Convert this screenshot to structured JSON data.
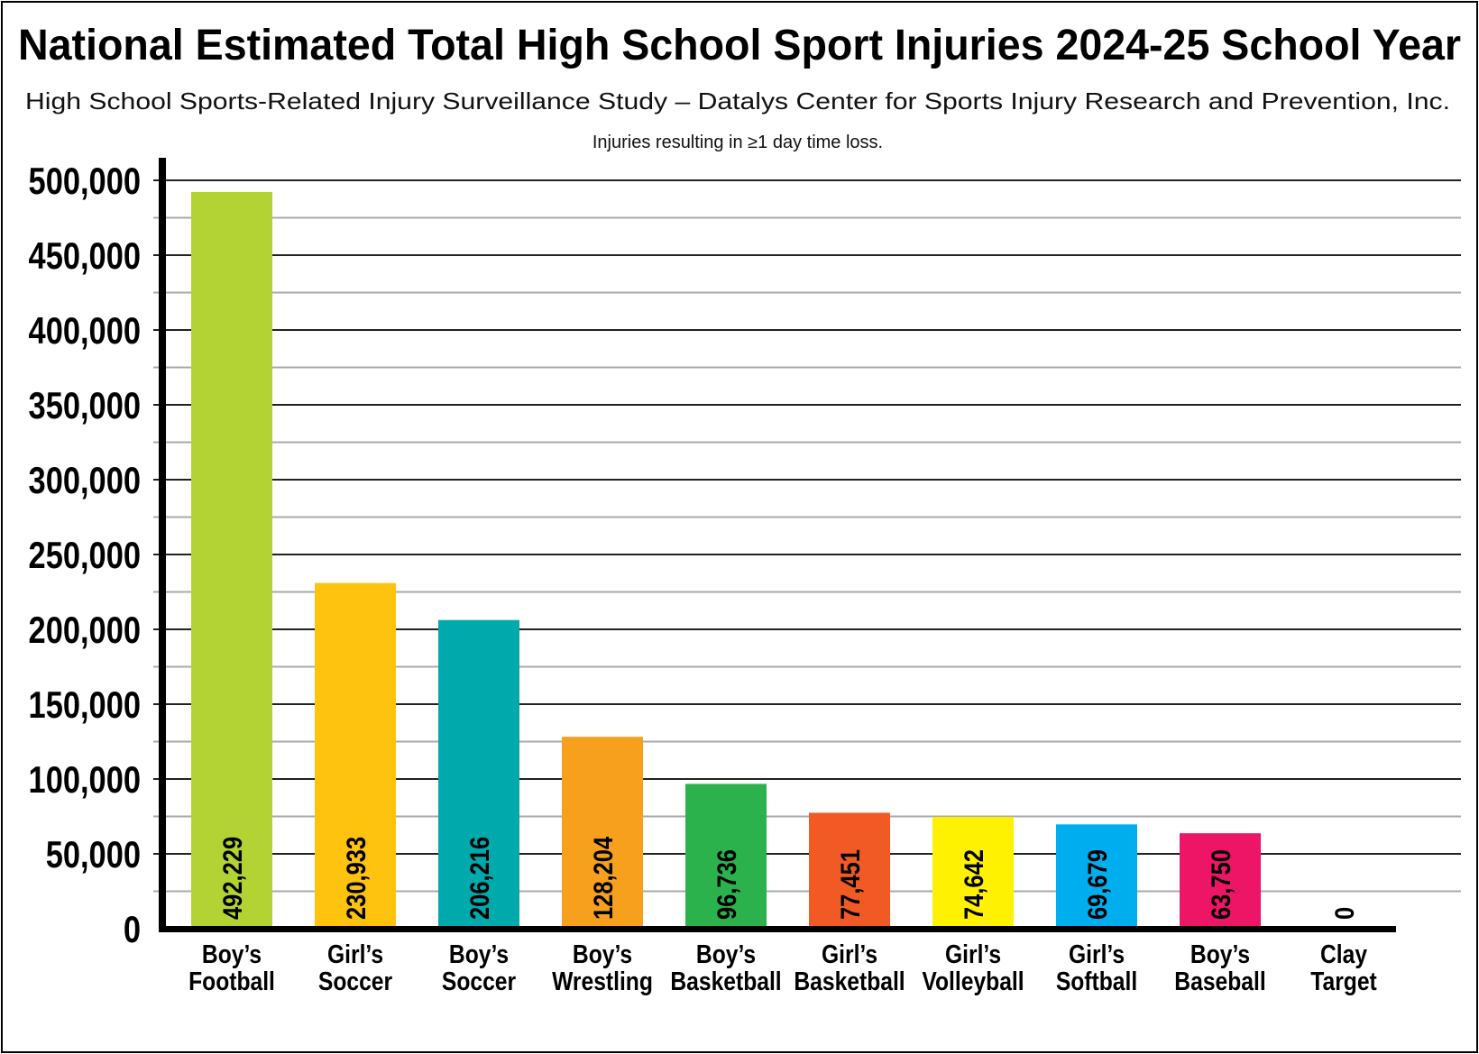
{
  "chart_data": {
    "type": "bar",
    "title": "National Estimated Total High School Sport Injuries 2024-25 School Year",
    "subtitle": "High School Sports-Related Injury Surveillance Study – Datalys Center for Sports Injury Research and Prevention, Inc.",
    "note": "Injuries resulting in ≥1 day time loss.",
    "xlabel": "",
    "ylabel": "",
    "ylim": [
      0,
      500000
    ],
    "yticks": [
      0,
      50000,
      100000,
      150000,
      200000,
      250000,
      300000,
      350000,
      400000,
      450000,
      500000
    ],
    "ytick_labels": [
      "0",
      "50,000",
      "100,000",
      "150,000",
      "200,000",
      "250,000",
      "300,000",
      "350,000",
      "400,000",
      "450,000",
      "500,000"
    ],
    "grid": true,
    "minor_grid_step": 25000,
    "legend": "none",
    "categories": [
      [
        "Boy’s",
        "Football"
      ],
      [
        "Girl’s",
        "Soccer"
      ],
      [
        "Boy’s",
        "Soccer"
      ],
      [
        "Boy’s",
        "Wrestling"
      ],
      [
        "Boy’s",
        "Basketball"
      ],
      [
        "Girl’s",
        "Basketball"
      ],
      [
        "Girl’s",
        "Volleyball"
      ],
      [
        "Girl’s",
        "Softball"
      ],
      [
        "Boy’s",
        "Baseball"
      ],
      [
        "Clay",
        "Target"
      ]
    ],
    "values": [
      492229,
      230933,
      206216,
      128204,
      96736,
      77451,
      74642,
      69679,
      63750,
      0
    ],
    "value_labels": [
      "492,229",
      "230,933",
      "206,216",
      "128,204",
      "96,736",
      "77,451",
      "74,642",
      "69,679",
      "63,750",
      "0"
    ],
    "colors": [
      "#b3d334",
      "#fec30f",
      "#00a9ac",
      "#f7a01e",
      "#2bb24c",
      "#f15a25",
      "#fff200",
      "#00aeef",
      "#ed1566",
      "#000000"
    ]
  }
}
